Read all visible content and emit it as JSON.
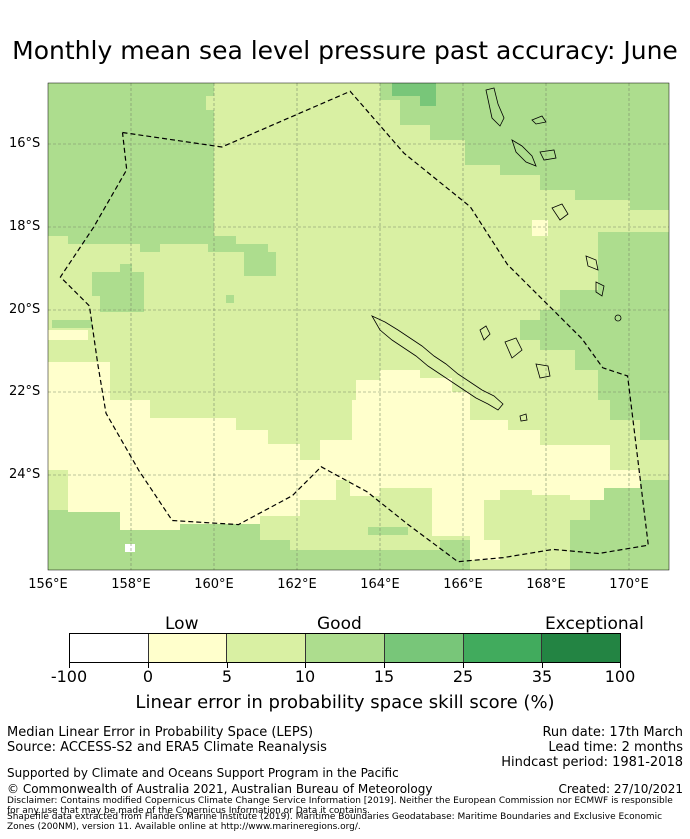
{
  "title": "Monthly mean sea level pressure past accuracy: June",
  "map": {
    "lat_labels": [
      "16°S",
      "18°S",
      "20°S",
      "22°S",
      "24°S"
    ],
    "lon_labels": [
      "156°E",
      "158°E",
      "160°E",
      "162°E",
      "164°E",
      "166°E",
      "168°E",
      "170°E"
    ],
    "lon_range": [
      156,
      171
    ],
    "lat_range": [
      -14.6,
      -26.4
    ],
    "boundary_style": "dashed",
    "boundary_lonlat": [
      [
        157.8,
        -15.8
      ],
      [
        160.2,
        -16.15
      ],
      [
        163.3,
        -14.8
      ],
      [
        164.6,
        -16.3
      ],
      [
        166.2,
        -17.6
      ],
      [
        167.1,
        -19.0
      ],
      [
        168.0,
        -19.9
      ],
      [
        168.9,
        -20.8
      ],
      [
        169.4,
        -21.5
      ],
      [
        170.0,
        -21.7
      ],
      [
        170.5,
        -25.8
      ],
      [
        169.3,
        -26.0
      ],
      [
        168.2,
        -25.9
      ],
      [
        167.0,
        -26.1
      ],
      [
        165.9,
        -26.2
      ],
      [
        164.7,
        -25.3
      ],
      [
        163.7,
        -24.5
      ],
      [
        162.6,
        -23.9
      ],
      [
        161.9,
        -24.6
      ],
      [
        160.6,
        -25.3
      ],
      [
        159.0,
        -25.2
      ],
      [
        158.2,
        -24.0
      ],
      [
        157.4,
        -22.6
      ],
      [
        157.2,
        -21.4
      ],
      [
        157.0,
        -20.0
      ],
      [
        156.3,
        -19.3
      ],
      [
        157.1,
        -18.1
      ],
      [
        157.9,
        -16.7
      ]
    ]
  },
  "colorbar": {
    "categories": [
      {
        "label": "Low",
        "center": 2.5
      },
      {
        "label": "Good",
        "center": 4.5
      },
      {
        "label": "Exceptional",
        "center": 6.5
      }
    ],
    "ticks": [
      "-100",
      "0",
      "5",
      "10",
      "15",
      "25",
      "35",
      "100"
    ],
    "colors": [
      "#ffffff",
      "#ffffcc",
      "#d9f0a3",
      "#addd8e",
      "#78c679",
      "#41ab5d",
      "#238443"
    ],
    "title": "Linear error in probability space skill score (%)"
  },
  "footer": {
    "left1": "Median Linear Error in Probability Space (LEPS)",
    "left2": "Source: ACCESS-S2 and ERA5 Climate Reanalysis",
    "right1": "Run date: 17th March",
    "right2": "Lead time: 2 months",
    "right3": "Hindcast period: 1981-2018",
    "support": "Supported by Climate and Oceans Support Program in the Pacific",
    "copyright": "© Commonwealth of Australia 2021, Australian Bureau of Meteorology",
    "created": "Created: 27/10/2021",
    "disclaimer": "Disclaimer: Contains modified Copernicus Climate Change Service Information [2019]. Neither the European Commission nor ECMWF is responsible for any use that may be made of the Copernicus Information or Data it contains.",
    "shapefile": "Shapefile data extracted from Flanders Marine Institute (2019). Maritime Boundaries Geodatabase: Maritime Boundaries and Exclusive Economic Zones (200NM), version 11. Available online at http://www.marineregions.org/."
  }
}
